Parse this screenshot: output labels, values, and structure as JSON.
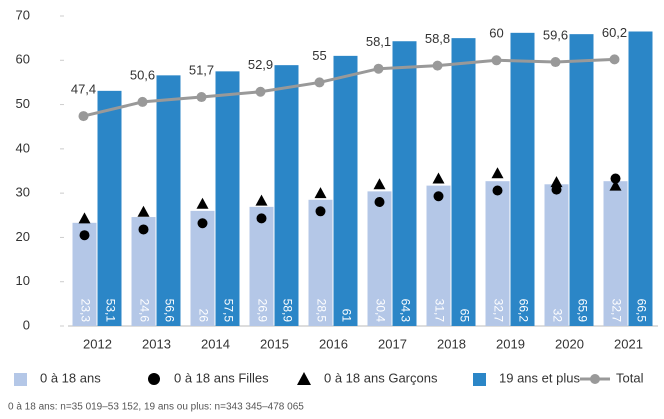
{
  "chart_data": {
    "type": "bar",
    "categories": [
      "2012",
      "2013",
      "2014",
      "2015",
      "2016",
      "2017",
      "2018",
      "2019",
      "2020",
      "2021"
    ],
    "series": [
      {
        "name": "0 à 18 ans",
        "kind": "bar",
        "color": "#b4c7e7",
        "values": [
          23.3,
          24.6,
          26,
          26.9,
          28.5,
          30.4,
          31.7,
          32.7,
          32,
          32.7
        ],
        "value_labels": [
          "23,3",
          "24,6",
          "26",
          "26,9",
          "28,5",
          "30,4",
          "31,7",
          "32,7",
          "32",
          "32,7"
        ]
      },
      {
        "name": "0 à 18 ans Filles",
        "kind": "marker",
        "marker": "circle",
        "color": "#000000",
        "values": [
          20.5,
          21.8,
          23.2,
          24.3,
          25.9,
          28,
          29.3,
          30.6,
          30.8,
          33.3
        ]
      },
      {
        "name": "0 à 18 ans Garçons",
        "kind": "marker",
        "marker": "triangle",
        "color": "#000000",
        "values": [
          24.3,
          25.8,
          27.6,
          28.3,
          30,
          32,
          33.3,
          34.5,
          32.5,
          31.7
        ]
      },
      {
        "name": "19 ans et plus",
        "kind": "bar",
        "color": "#2b86c7",
        "values": [
          53.1,
          56.6,
          57.5,
          58.9,
          61,
          64.3,
          65,
          66.2,
          65.9,
          66.5
        ],
        "value_labels": [
          "53,1",
          "56,6",
          "57,5",
          "58,9",
          "61",
          "64,3",
          "65",
          "66,2",
          "65,9",
          "66,5"
        ]
      },
      {
        "name": "Total",
        "kind": "line",
        "color": "#999999",
        "values": [
          47.4,
          50.6,
          51.7,
          52.9,
          55,
          58.1,
          58.8,
          60,
          59.6,
          60.2
        ],
        "value_labels": [
          "47,4",
          "50,6",
          "51,7",
          "52,9",
          "55",
          "58,1",
          "58,8",
          "60",
          "59,6",
          "60,2"
        ]
      }
    ],
    "ylim": [
      0,
      70
    ],
    "yticks": [
      0,
      10,
      20,
      30,
      40,
      50,
      60,
      70
    ],
    "footnote": "0 à 18 ans: n=35 019–53 152, 19 ans ou plus: n=343 345–478 065"
  }
}
